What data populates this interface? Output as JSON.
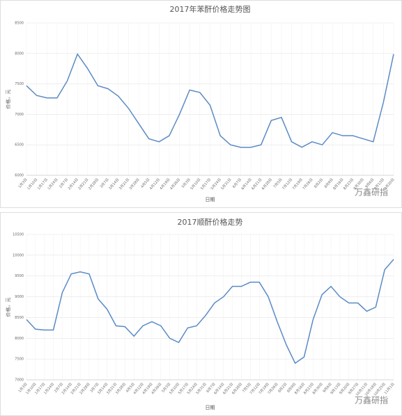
{
  "chart_data": [
    {
      "type": "line",
      "title": "2017年苯酐价格走势图",
      "x_label": "日期",
      "y_label": "价格，元",
      "watermark": "万鑫研指",
      "categories": [
        "1月3日",
        "1月10日",
        "1月17日",
        "1月24日",
        "2月7日",
        "2月14日",
        "2月21日",
        "2月28日",
        "3月7日",
        "3月14日",
        "3月21日",
        "3月28日",
        "4月5日",
        "4月12日",
        "4月19日",
        "4月26日",
        "5月3日",
        "5月10日",
        "5月17日",
        "5月24日",
        "5月31日",
        "6月7日",
        "6月14日",
        "6月21日",
        "6月28日",
        "7月5日",
        "7月12日",
        "7月19日",
        "7月26日",
        "8月2日",
        "8月9日",
        "8月16日",
        "8月23日",
        "8月30日",
        "9月6日",
        "9月13日",
        "9月20日"
      ],
      "series": [
        {
          "name": "苯酐",
          "color": "#5a8ac6",
          "values": [
            7470,
            7310,
            7270,
            7270,
            7550,
            7990,
            7750,
            7470,
            7420,
            7300,
            7100,
            6850,
            6600,
            6550,
            6650,
            7000,
            7400,
            7360,
            7150,
            6650,
            6500,
            6460,
            6460,
            6500,
            6900,
            6950,
            6550,
            6460,
            6550,
            6500,
            6700,
            6650,
            6650,
            6600,
            6550,
            7200,
            7990
          ]
        }
      ],
      "ylim": [
        6000,
        8500
      ],
      "yticks": [
        6000,
        6500,
        7000,
        7500,
        8000,
        8500
      ],
      "grid": true
    },
    {
      "type": "line",
      "title": "2017顺酐价格走势",
      "x_label": "日期",
      "y_label": "价格，元",
      "watermark": "万鑫研指",
      "categories": [
        "1月3日",
        "1月10日",
        "1月17日",
        "1月24日",
        "2月7日",
        "2月14日",
        "2月21日",
        "2月28日",
        "3月7日",
        "3月14日",
        "3月21日",
        "3月28日",
        "4月5日",
        "4月12日",
        "4月19日",
        "4月26日",
        "5月3日",
        "5月10日",
        "5月17日",
        "5月24日",
        "5月31日",
        "6月7日",
        "6月14日",
        "6月21日",
        "6月28日",
        "7月5日",
        "7月12日",
        "7月19日",
        "7月26日",
        "8月2日",
        "8月9日",
        "8月16日",
        "8月23日",
        "8月30日",
        "9月6日",
        "9月13日",
        "9月20日",
        "9月27日",
        "10月11日",
        "10月18日",
        "10月25日",
        "11月1日"
      ],
      "series": [
        {
          "name": "顺酐",
          "color": "#5a8ac6",
          "values": [
            8450,
            8220,
            8200,
            8200,
            9100,
            9550,
            9600,
            9550,
            8950,
            8700,
            8300,
            8280,
            8050,
            8300,
            8400,
            8300,
            8000,
            7900,
            8250,
            8300,
            8550,
            8850,
            9000,
            9250,
            9250,
            9350,
            9350,
            9000,
            8400,
            7850,
            7400,
            7550,
            8450,
            9050,
            9250,
            9000,
            8850,
            8850,
            8650,
            8750,
            9650,
            9900
          ]
        }
      ],
      "ylim": [
        7000,
        10500
      ],
      "yticks": [
        7000,
        7500,
        8000,
        8500,
        9000,
        9500,
        10000,
        10500
      ],
      "grid": true
    }
  ]
}
